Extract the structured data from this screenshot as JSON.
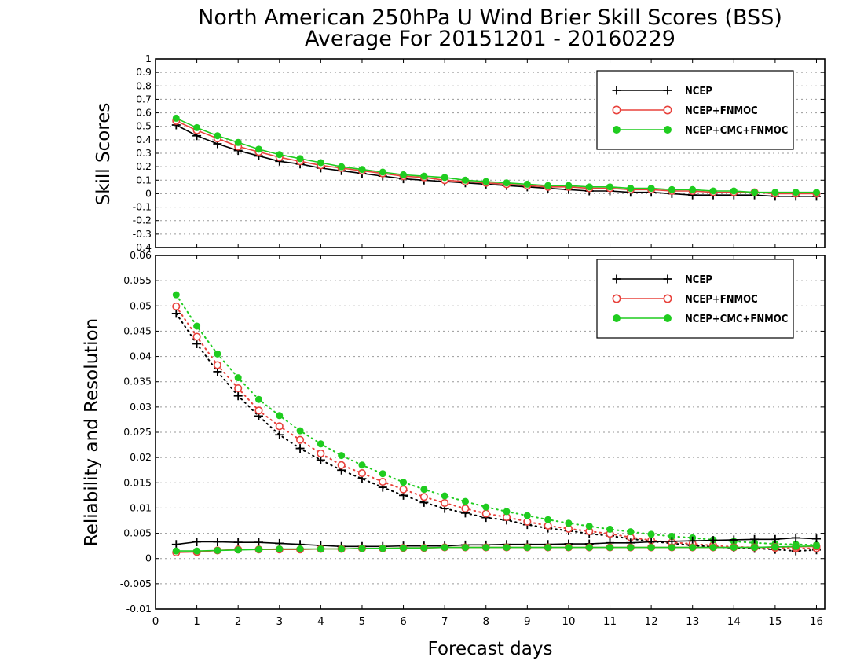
{
  "title_line1": "North American 250hPa U Wind Brier Skill Scores (BSS)",
  "title_line2": "Average For 20151201 - 20160229",
  "xlabel": "Forecast days",
  "colors": {
    "NCEP": "#000000",
    "NCEP+FNMOC": "#e8423c",
    "NCEP+CMC+FNMOC": "#1fcc1f"
  },
  "chart_data": [
    {
      "type": "line",
      "ylabel": "Skill Scores",
      "xlim": [
        0,
        16.2
      ],
      "ylim": [
        -0.4,
        1
      ],
      "xticks": [
        "0",
        "1",
        "2",
        "3",
        "4",
        "5",
        "6",
        "7",
        "8",
        "9",
        "10",
        "11",
        "12",
        "13",
        "14",
        "15",
        "16"
      ],
      "yticks": [
        "-0.4",
        "-0.3",
        "-0.2",
        "-0.1",
        "0",
        "0.1",
        "0.2",
        "0.3",
        "0.4",
        "0.5",
        "0.6",
        "0.7",
        "0.8",
        "0.9",
        "1"
      ],
      "legend": [
        "NCEP",
        "NCEP+FNMOC",
        "NCEP+CMC+FNMOC"
      ],
      "legend_position": "top-right",
      "grid": true,
      "x": [
        0.5,
        1,
        1.5,
        2,
        2.5,
        3,
        3.5,
        4,
        4.5,
        5,
        5.5,
        6,
        6.5,
        7,
        7.5,
        8,
        8.5,
        9,
        9.5,
        10,
        10.5,
        11,
        11.5,
        12,
        12.5,
        13,
        13.5,
        14,
        14.5,
        15,
        15.5,
        16
      ],
      "series": [
        {
          "name": "NCEP",
          "marker": "plus",
          "values": [
            0.51,
            0.43,
            0.37,
            0.32,
            0.28,
            0.24,
            0.22,
            0.19,
            0.17,
            0.15,
            0.13,
            0.11,
            0.1,
            0.09,
            0.08,
            0.07,
            0.06,
            0.05,
            0.04,
            0.03,
            0.02,
            0.02,
            0.01,
            0.01,
            0.0,
            -0.01,
            -0.01,
            -0.01,
            -0.01,
            -0.02,
            -0.02,
            -0.02
          ]
        },
        {
          "name": "NCEP+FNMOC",
          "marker": "circle-open",
          "values": [
            0.54,
            0.47,
            0.41,
            0.35,
            0.31,
            0.27,
            0.24,
            0.21,
            0.19,
            0.17,
            0.15,
            0.13,
            0.12,
            0.1,
            0.09,
            0.08,
            0.07,
            0.06,
            0.05,
            0.05,
            0.04,
            0.04,
            0.03,
            0.03,
            0.02,
            0.02,
            0.01,
            0.01,
            0.01,
            0.0,
            0.0,
            0.0
          ]
        },
        {
          "name": "NCEP+CMC+FNMOC",
          "marker": "circle-filled",
          "values": [
            0.56,
            0.49,
            0.43,
            0.38,
            0.33,
            0.29,
            0.26,
            0.23,
            0.2,
            0.18,
            0.16,
            0.14,
            0.13,
            0.12,
            0.1,
            0.09,
            0.08,
            0.07,
            0.06,
            0.06,
            0.05,
            0.05,
            0.04,
            0.04,
            0.03,
            0.03,
            0.02,
            0.02,
            0.01,
            0.01,
            0.01,
            0.01
          ]
        }
      ]
    },
    {
      "type": "line",
      "ylabel": "Reliability and Resolution",
      "xlim": [
        0,
        16.2
      ],
      "ylim": [
        -0.01,
        0.06
      ],
      "xticks": [
        "0",
        "1",
        "2",
        "3",
        "4",
        "5",
        "6",
        "7",
        "8",
        "9",
        "10",
        "11",
        "12",
        "13",
        "14",
        "15",
        "16"
      ],
      "yticks": [
        "-0.01",
        "-0.005",
        "0",
        "0.005",
        "0.01",
        "0.015",
        "0.02",
        "0.025",
        "0.03",
        "0.035",
        "0.04",
        "0.045",
        "0.05",
        "0.055",
        "0.06"
      ],
      "legend": [
        "NCEP",
        "NCEP+FNMOC",
        "NCEP+CMC+FNMOC"
      ],
      "legend_position": "top-right",
      "grid": true,
      "x": [
        0.5,
        1,
        1.5,
        2,
        2.5,
        3,
        3.5,
        4,
        4.5,
        5,
        5.5,
        6,
        6.5,
        7,
        7.5,
        8,
        8.5,
        9,
        9.5,
        10,
        10.5,
        11,
        11.5,
        12,
        12.5,
        13,
        13.5,
        14,
        14.5,
        15,
        15.5,
        16
      ],
      "series": [
        {
          "name": "NCEP",
          "component": "resolution",
          "line": "dotted",
          "marker": "plus",
          "values": [
            0.0485,
            0.0425,
            0.037,
            0.0322,
            0.0282,
            0.0245,
            0.0218,
            0.0195,
            0.0175,
            0.0158,
            0.0141,
            0.0125,
            0.0111,
            0.0099,
            0.009,
            0.0081,
            0.0076,
            0.0067,
            0.006,
            0.0055,
            0.0049,
            0.0045,
            0.0039,
            0.0034,
            0.003,
            0.0026,
            0.0023,
            0.0021,
            0.002,
            0.0018,
            0.0015,
            0.0017
          ]
        },
        {
          "name": "NCEP+FNMOC",
          "component": "resolution",
          "line": "dotted",
          "marker": "circle-open",
          "values": [
            0.0499,
            0.0439,
            0.0383,
            0.0337,
            0.0293,
            0.0262,
            0.0235,
            0.0208,
            0.0185,
            0.0169,
            0.0152,
            0.0137,
            0.0122,
            0.011,
            0.0099,
            0.0089,
            0.0082,
            0.0073,
            0.0065,
            0.0059,
            0.0054,
            0.0049,
            0.0042,
            0.0036,
            0.0032,
            0.0029,
            0.0026,
            0.0023,
            0.0022,
            0.0021,
            0.002,
            0.002
          ]
        },
        {
          "name": "NCEP+CMC+FNMOC",
          "component": "resolution",
          "line": "dotted",
          "marker": "circle-filled",
          "values": [
            0.0522,
            0.046,
            0.0405,
            0.0358,
            0.0315,
            0.0283,
            0.0253,
            0.0227,
            0.0204,
            0.0185,
            0.0168,
            0.0151,
            0.0137,
            0.0124,
            0.0113,
            0.0102,
            0.0093,
            0.0085,
            0.0077,
            0.007,
            0.0064,
            0.0058,
            0.0053,
            0.0048,
            0.0044,
            0.0041,
            0.0037,
            0.0034,
            0.0031,
            0.0029,
            0.0028,
            0.0027
          ]
        },
        {
          "name": "NCEP",
          "component": "reliability",
          "line": "solid",
          "marker": "plus",
          "values": [
            0.0028,
            0.0033,
            0.0033,
            0.0032,
            0.0032,
            0.003,
            0.0028,
            0.0026,
            0.0024,
            0.0024,
            0.0024,
            0.0025,
            0.0025,
            0.0025,
            0.0027,
            0.0027,
            0.0028,
            0.0028,
            0.0028,
            0.0029,
            0.0029,
            0.0031,
            0.0031,
            0.0033,
            0.0034,
            0.0035,
            0.0036,
            0.0037,
            0.0038,
            0.0038,
            0.0041,
            0.0039
          ]
        },
        {
          "name": "NCEP+FNMOC",
          "component": "reliability",
          "line": "solid",
          "marker": "circle-open",
          "values": [
            0.0012,
            0.0013,
            0.0016,
            0.0018,
            0.0018,
            0.0018,
            0.0018,
            0.0019,
            0.0019,
            0.002,
            0.002,
            0.0021,
            0.0021,
            0.0022,
            0.0022,
            0.0022,
            0.0022,
            0.0022,
            0.0022,
            0.0022,
            0.0022,
            0.0022,
            0.0022,
            0.0022,
            0.0022,
            0.0022,
            0.0022,
            0.0022,
            0.0022,
            0.0023,
            0.0023,
            0.0024
          ]
        },
        {
          "name": "NCEP+CMC+FNMOC",
          "component": "reliability",
          "line": "solid",
          "marker": "circle-filled",
          "values": [
            0.0015,
            0.0015,
            0.0016,
            0.0017,
            0.0018,
            0.0019,
            0.0019,
            0.0019,
            0.0019,
            0.002,
            0.002,
            0.0021,
            0.0021,
            0.0022,
            0.0022,
            0.0022,
            0.0022,
            0.0022,
            0.0022,
            0.0022,
            0.0022,
            0.0022,
            0.0022,
            0.0022,
            0.0022,
            0.0022,
            0.0022,
            0.0022,
            0.0022,
            0.0023,
            0.0024,
            0.0025
          ]
        }
      ]
    }
  ]
}
